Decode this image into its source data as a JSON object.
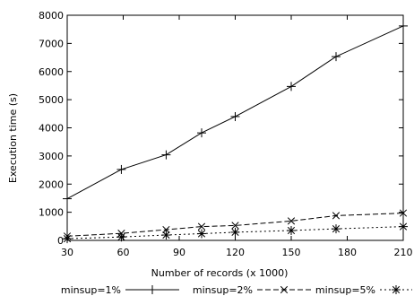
{
  "chart_data": {
    "type": "line",
    "title": "",
    "xlabel": "Number of records (x 1000)",
    "ylabel": "Execution time (s)",
    "xlim": [
      30,
      210
    ],
    "ylim": [
      0,
      8000
    ],
    "x_ticks": [
      "30",
      "60",
      "90",
      "120",
      "150",
      "180",
      "210"
    ],
    "y_ticks": [
      "0",
      "1000",
      "2000",
      "3000",
      "4000",
      "5000",
      "6000",
      "7000",
      "8000"
    ],
    "grid": false,
    "legend_position": "bottom",
    "series": [
      {
        "name": "minsup=1%",
        "line_style": "solid",
        "marker": "plus",
        "color": "#000000",
        "x": [
          30,
          59,
          83,
          102,
          120,
          150,
          174,
          210
        ],
        "y": [
          1480,
          2520,
          3040,
          3820,
          4400,
          5470,
          6530,
          7620
        ]
      },
      {
        "name": "minsup=2%",
        "line_style": "dashed",
        "marker": "cross",
        "color": "#000000",
        "x": [
          30,
          59,
          83,
          102,
          120,
          150,
          174,
          210
        ],
        "y": [
          150,
          250,
          380,
          490,
          530,
          690,
          880,
          970
        ]
      },
      {
        "name": "minsup=5%",
        "line_style": "dotted",
        "marker": "star",
        "color": "#000000",
        "x": [
          30,
          59,
          83,
          102,
          120,
          150,
          174,
          210
        ],
        "y": [
          60,
          120,
          190,
          240,
          290,
          350,
          410,
          490
        ]
      }
    ]
  }
}
